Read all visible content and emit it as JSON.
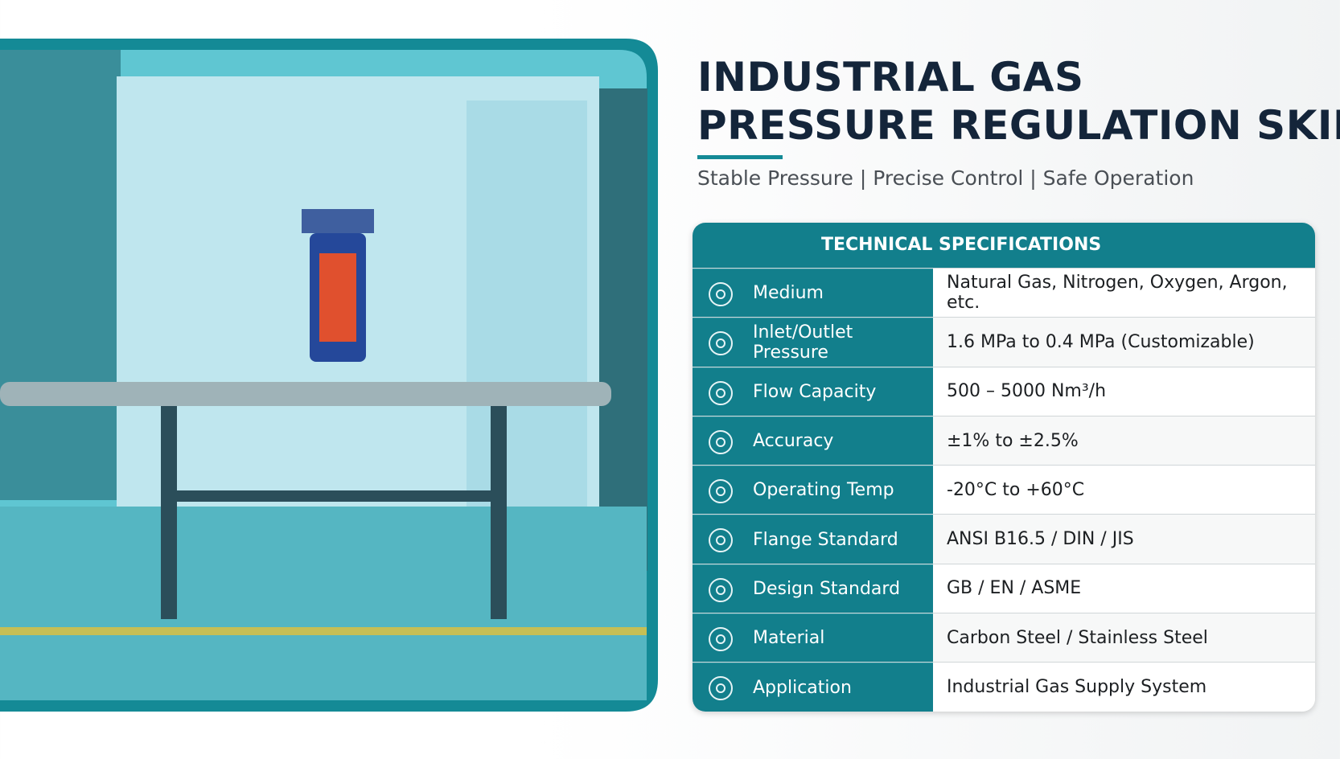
{
  "header": {
    "title_lines": [
      "INDUSTRIAL GAS",
      "PRESSURE REGULATION SKID"
    ],
    "subtitle": "Stable Pressure | Precise Control | Safe Operation"
  },
  "table": {
    "title": "TECHNICAL SPECIFICATIONS",
    "rows": [
      [
        "Medium",
        "Natural Gas, Nitrogen, Oxygen, Argon, etc."
      ],
      [
        "Inlet/Outlet Pressure",
        "1.6 MPa to 0.4 MPa (Customizable)"
      ],
      [
        "Flow Capacity",
        "500 – 5000 Nm³/h"
      ],
      [
        "Accuracy",
        "±1% to ±2.5%"
      ],
      [
        "Operating Temp",
        "-20°C to +60°C"
      ],
      [
        "Flange Standard",
        "ANSI B16.5 / DIN / JIS"
      ],
      [
        "Design Standard",
        "GB / EN / ASME"
      ],
      [
        "Material",
        "Carbon Steel / Stainless Steel"
      ],
      [
        "Application",
        "Industrial Gas Supply System"
      ]
    ]
  }
}
